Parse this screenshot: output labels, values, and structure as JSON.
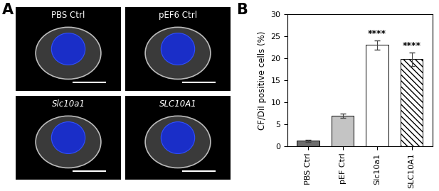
{
  "panel_a": {
    "label": "A",
    "images": [
      "PBS Ctrl",
      "pEF6 Ctrl",
      "Slc10a1",
      "SLC10A1"
    ]
  },
  "panel_b": {
    "label": "B"
  },
  "chart_data": {
    "type": "bar",
    "y_label": "CF/DiI positive cells (%)",
    "categories": [
      "PBS Ctrl",
      "pEF Ctrl",
      "Slc10a1",
      "SLC10A1"
    ],
    "values": [
      1.2,
      6.9,
      23.0,
      19.8
    ],
    "errors": [
      0.2,
      0.5,
      1.1,
      1.5
    ],
    "colors": [
      "#6e6e6e",
      "#c4c4c4",
      "#ffffff",
      "#ffffff"
    ],
    "ylim": [
      0,
      30
    ],
    "yticks": [
      0,
      5,
      10,
      15,
      20,
      25,
      30
    ],
    "annotations": [
      {
        "category": "Slc10a1",
        "text": "****"
      },
      {
        "category": "SLC10A1",
        "text": "****"
      }
    ]
  }
}
